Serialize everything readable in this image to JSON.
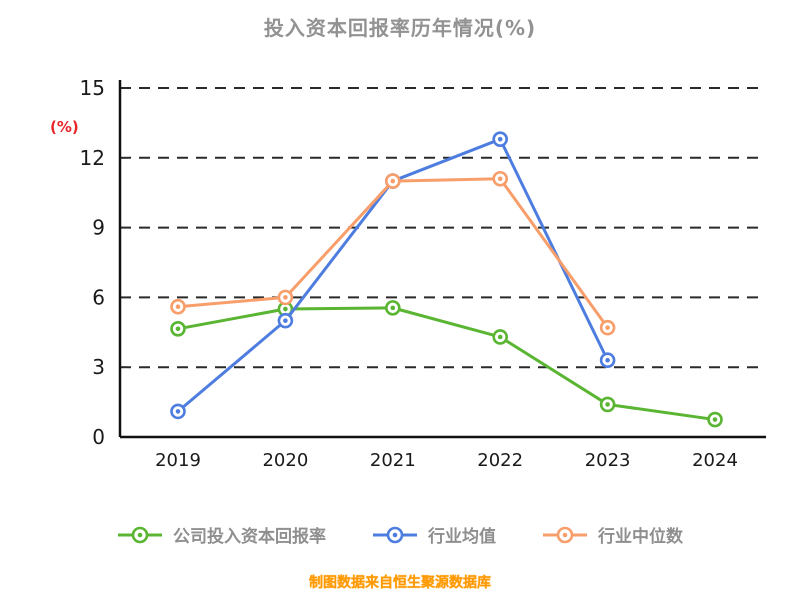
{
  "title": "投入资本回报率历年情况(%)",
  "footer": "制图数据来自恒生聚源数据库",
  "chart_data": {
    "type": "line",
    "x": [
      "2019",
      "2020",
      "2021",
      "2022",
      "2023",
      "2024"
    ],
    "series": [
      {
        "name": "公司投入资本回报率",
        "color": "#5ab532",
        "values": [
          4.65,
          5.5,
          5.55,
          4.3,
          1.4,
          0.75
        ]
      },
      {
        "name": "行业均值",
        "color": "#4e7de0",
        "values": [
          1.1,
          5.0,
          11.0,
          12.8,
          3.3,
          null
        ]
      },
      {
        "name": "行业中位数",
        "color": "#f89e6b",
        "values": [
          5.6,
          6.0,
          11.0,
          11.1,
          4.7,
          null
        ]
      }
    ],
    "ylabel": "(%)",
    "ylabel_color": "#e8262c",
    "ylim": [
      0,
      15
    ],
    "yticks": [
      0,
      3,
      6,
      9,
      12,
      15
    ],
    "grid": "dashed-horizontal",
    "legend_position": "bottom"
  }
}
